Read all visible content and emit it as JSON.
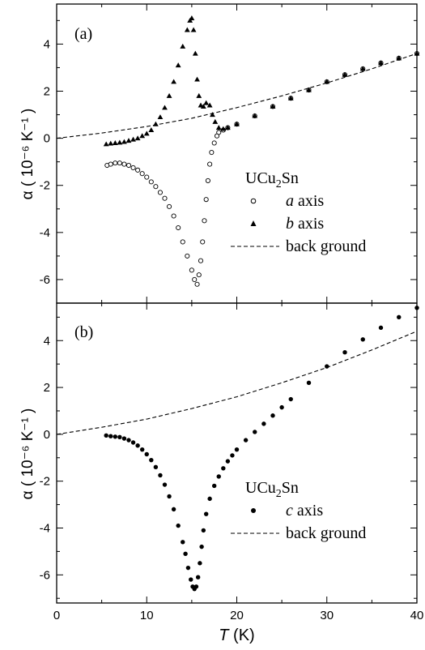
{
  "chart_data": [
    {
      "type": "scatter",
      "panel_label": "(a)",
      "title": "",
      "xlabel": "",
      "ylabel": "α ( 10⁻⁶ K⁻¹ )",
      "xlim": [
        0,
        40
      ],
      "ylim": [
        -7,
        5.7
      ],
      "yticks": [
        -6,
        -4,
        -2,
        0,
        2,
        4
      ],
      "ytick_labels": [
        "-6",
        "-4",
        "-2",
        "0",
        "2",
        "4"
      ],
      "grid": false,
      "legend_title": "UCu2Sn",
      "legend_position": "right-center",
      "series": [
        {
          "name": "a axis",
          "axis_letter": "a",
          "axis_word": "axis",
          "marker": "open-circle",
          "x": [
            5.6,
            6.0,
            6.5,
            7.0,
            7.5,
            8.0,
            8.5,
            9.0,
            9.5,
            10.0,
            10.5,
            11.0,
            11.5,
            12.0,
            12.5,
            13.0,
            13.5,
            14.0,
            14.5,
            15.0,
            15.3,
            15.6,
            15.8,
            16.0,
            16.2,
            16.4,
            16.6,
            16.8,
            17.0,
            17.2,
            17.5,
            17.8,
            18.0,
            18.5,
            19.0,
            20.0,
            22.0,
            24.0,
            26.0,
            28.0,
            30.0,
            32.0,
            34.0,
            36.0,
            38.0,
            40.0
          ],
          "y": [
            -1.15,
            -1.1,
            -1.05,
            -1.05,
            -1.1,
            -1.15,
            -1.25,
            -1.35,
            -1.5,
            -1.65,
            -1.85,
            -2.05,
            -2.3,
            -2.55,
            -2.9,
            -3.3,
            -3.8,
            -4.4,
            -5.0,
            -5.6,
            -6.0,
            -6.2,
            -5.8,
            -5.2,
            -4.4,
            -3.5,
            -2.6,
            -1.8,
            -1.1,
            -0.6,
            -0.2,
            0.1,
            0.25,
            0.35,
            0.45,
            0.6,
            0.95,
            1.35,
            1.7,
            2.05,
            2.4,
            2.7,
            2.95,
            3.2,
            3.4,
            3.6
          ]
        },
        {
          "name": "b axis",
          "axis_letter": "b",
          "axis_word": "axis",
          "marker": "filled-triangle",
          "x": [
            5.5,
            6.0,
            6.5,
            7.0,
            7.5,
            8.0,
            8.5,
            9.0,
            9.5,
            10.0,
            10.5,
            11.0,
            11.5,
            12.0,
            12.5,
            13.0,
            13.5,
            14.0,
            14.5,
            14.8,
            15.0,
            15.2,
            15.4,
            15.6,
            15.8,
            16.0,
            16.3,
            16.6,
            17.0,
            17.3,
            17.6,
            18.0,
            18.5,
            19.0,
            20.0,
            22.0,
            24.0,
            26.0,
            28.0,
            30.0,
            32.0,
            34.0,
            36.0,
            38.0,
            40.0
          ],
          "y": [
            -0.25,
            -0.22,
            -0.2,
            -0.18,
            -0.15,
            -0.1,
            -0.05,
            0.0,
            0.1,
            0.2,
            0.35,
            0.6,
            0.9,
            1.3,
            1.8,
            2.4,
            3.1,
            3.9,
            4.6,
            5.0,
            5.1,
            4.6,
            3.6,
            2.5,
            1.8,
            1.4,
            1.35,
            1.5,
            1.4,
            1.0,
            0.7,
            0.45,
            0.4,
            0.45,
            0.6,
            0.95,
            1.35,
            1.7,
            2.05,
            2.4,
            2.7,
            2.95,
            3.2,
            3.4,
            3.6
          ]
        },
        {
          "name": "back ground",
          "marker": "dashed-line",
          "x": [
            0,
            5,
            10,
            15,
            20,
            25,
            30,
            35,
            40
          ],
          "y": [
            0.0,
            0.22,
            0.5,
            0.85,
            1.3,
            1.8,
            2.35,
            2.95,
            3.6
          ]
        }
      ]
    },
    {
      "type": "scatter",
      "panel_label": "(b)",
      "title": "",
      "xlabel_italic": "T",
      "xlabel_unit": " (K)",
      "ylabel": "α ( 10⁻⁶ K⁻¹ )",
      "xlim": [
        0,
        40
      ],
      "ylim": [
        -7.2,
        5.6
      ],
      "xticks": [
        0,
        10,
        20,
        30,
        40
      ],
      "xtick_labels": [
        "0",
        "10",
        "20",
        "30",
        "40"
      ],
      "yticks": [
        -6,
        -4,
        -2,
        0,
        2,
        4
      ],
      "ytick_labels": [
        "-6",
        "-4",
        "-2",
        "0",
        "2",
        "4"
      ],
      "grid": false,
      "legend_title": "UCu2Sn",
      "legend_position": "bottom-right",
      "series": [
        {
          "name": "c axis",
          "axis_letter": "c",
          "axis_word": "axis",
          "marker": "filled-circle",
          "x": [
            5.5,
            6.0,
            6.5,
            7.0,
            7.5,
            8.0,
            8.5,
            9.0,
            9.5,
            10.0,
            10.5,
            11.0,
            11.5,
            12.0,
            12.5,
            13.0,
            13.5,
            14.0,
            14.3,
            14.6,
            14.9,
            15.1,
            15.3,
            15.5,
            15.7,
            15.9,
            16.1,
            16.3,
            16.6,
            17.0,
            17.5,
            18.0,
            18.5,
            19.0,
            19.5,
            20.0,
            21.0,
            22.0,
            23.0,
            24.0,
            25.0,
            26.0,
            28.0,
            30.0,
            32.0,
            34.0,
            36.0,
            38.0,
            40.0
          ],
          "y": [
            -0.05,
            -0.08,
            -0.1,
            -0.12,
            -0.18,
            -0.25,
            -0.35,
            -0.48,
            -0.65,
            -0.85,
            -1.1,
            -1.4,
            -1.75,
            -2.15,
            -2.65,
            -3.2,
            -3.9,
            -4.6,
            -5.1,
            -5.7,
            -6.2,
            -6.5,
            -6.6,
            -6.5,
            -6.1,
            -5.5,
            -4.8,
            -4.1,
            -3.4,
            -2.75,
            -2.2,
            -1.8,
            -1.45,
            -1.15,
            -0.9,
            -0.65,
            -0.25,
            0.1,
            0.45,
            0.8,
            1.15,
            1.5,
            2.2,
            2.9,
            3.5,
            4.05,
            4.55,
            5.0,
            5.4
          ]
        },
        {
          "name": "back ground",
          "marker": "dashed-line",
          "x": [
            0,
            5,
            10,
            15,
            20,
            25,
            30,
            35,
            40
          ],
          "y": [
            0.0,
            0.3,
            0.65,
            1.1,
            1.6,
            2.2,
            2.85,
            3.6,
            4.4
          ]
        }
      ]
    }
  ]
}
